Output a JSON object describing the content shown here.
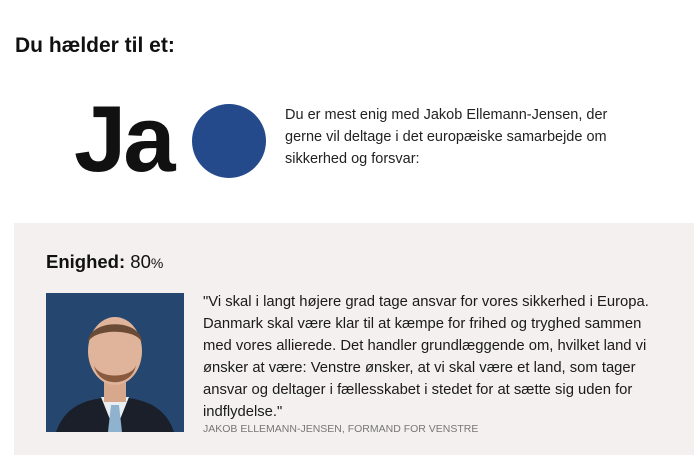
{
  "header": {
    "title": "Du hælder til et:"
  },
  "result": {
    "answer": "Ja",
    "color": "#254a8c",
    "description": "Du er mest enig med Jakob Ellemann-Jensen, der gerne vil deltage i det europæiske samarbejde om sikkerhed og forsvar:"
  },
  "match": {
    "label": "Enighed:",
    "value": "80",
    "unit": "%",
    "quote": "\"Vi skal i langt højere grad tage ansvar for vores sikkerhed i Europa. Danmark skal være klar til at kæmpe for frihed og tryghed sammen med vores allierede. Det handler grundlæggende om, hvilket land vi ønsker at være: Venstre ønsker, at vi skal være et land, som tager ansvar og deltager i fællesskabet i stedet for at sætte sig uden for indflydelse.\"",
    "attribution": "JAKOB ELLEMANN-JENSEN, FORMAND FOR VENSTRE",
    "photo_bg": "#24466f"
  }
}
